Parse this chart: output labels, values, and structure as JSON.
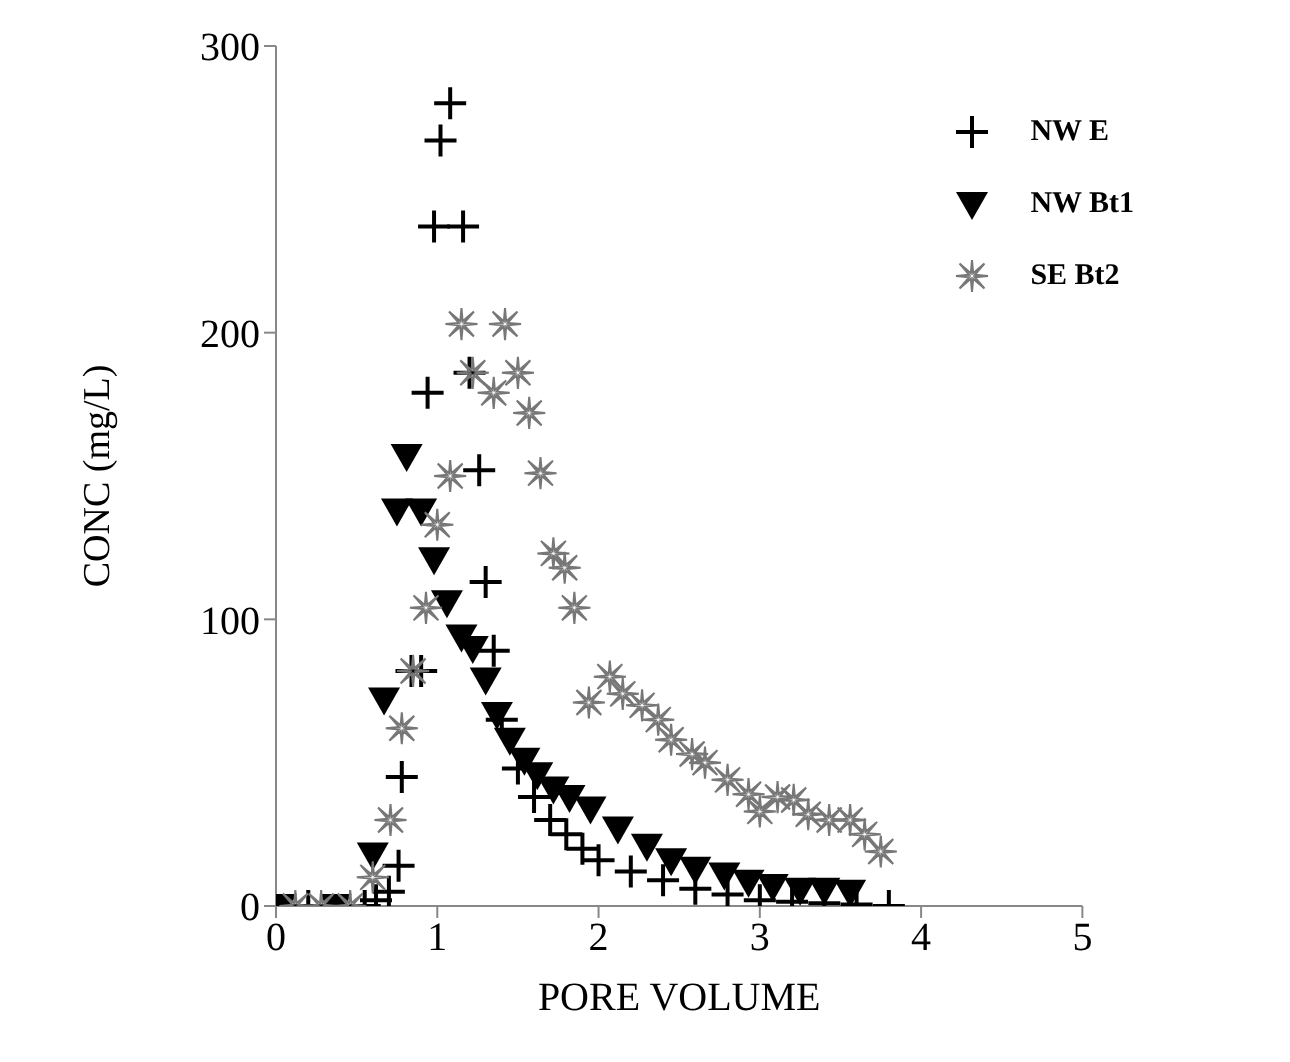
{
  "chart_data": {
    "type": "scatter",
    "xlabel": "PORE VOLUME",
    "ylabel": "CONC (mg/L)",
    "xlim": [
      0,
      5
    ],
    "ylim": [
      0,
      300
    ],
    "xticks": [
      0,
      1,
      2,
      3,
      4,
      5
    ],
    "yticks": [
      0,
      100,
      200,
      300
    ],
    "grid": false,
    "legend": "top right",
    "series": [
      {
        "name": "NW E",
        "color": "#000000",
        "marker": "cross",
        "x": [
          0.2,
          0.55,
          0.62,
          0.7,
          0.76,
          0.78,
          0.84,
          0.9,
          0.94,
          0.98,
          1.02,
          1.08,
          1.16,
          1.2,
          1.26,
          1.3,
          1.35,
          1.4,
          1.5,
          1.6,
          1.7,
          1.8,
          1.9,
          2.0,
          2.2,
          2.4,
          2.6,
          2.8,
          3.0,
          3.2,
          3.4,
          3.6,
          3.8
        ],
        "values": [
          0,
          0,
          2,
          5,
          14,
          45,
          82,
          82,
          179,
          237,
          267,
          280,
          237,
          186,
          152,
          113,
          89,
          65,
          48,
          38,
          30,
          25,
          20,
          16,
          12,
          9,
          6,
          4,
          2,
          1.5,
          1,
          0.5,
          0
        ]
      },
      {
        "name": "NW Bt1",
        "color": "#000000",
        "marker": "triangle",
        "x": [
          0.03,
          0.37,
          0.6,
          0.67,
          0.75,
          0.81,
          0.9,
          0.98,
          1.06,
          1.15,
          1.22,
          1.3,
          1.37,
          1.45,
          1.54,
          1.62,
          1.72,
          1.82,
          1.95,
          2.12,
          2.3,
          2.45,
          2.6,
          2.78,
          2.93,
          3.08,
          3.25,
          3.4,
          3.56
        ],
        "values": [
          0,
          0,
          18,
          72,
          138,
          157,
          138,
          121,
          106,
          94,
          90,
          79,
          67,
          58,
          51,
          46,
          41,
          38,
          34,
          27,
          21,
          16,
          13,
          11,
          8.5,
          7,
          5.7,
          5.7,
          5
        ]
      },
      {
        "name": "SE Bt2",
        "color": "#777777",
        "marker": "star",
        "x": [
          0.12,
          0.28,
          0.46,
          0.6,
          0.71,
          0.78,
          0.85,
          0.93,
          1.0,
          1.08,
          1.15,
          1.22,
          1.35,
          1.42,
          1.5,
          1.57,
          1.64,
          1.72,
          1.79,
          1.85,
          1.94,
          2.07,
          2.15,
          2.27,
          2.37,
          2.45,
          2.58,
          2.66,
          2.8,
          2.93,
          3.0,
          3.11,
          3.21,
          3.3,
          3.43,
          3.56,
          3.65,
          3.75
        ],
        "values": [
          0,
          0,
          0,
          10,
          30,
          62,
          82,
          104,
          133,
          150,
          203,
          186,
          179,
          203,
          186,
          172,
          151,
          123,
          118,
          104,
          71,
          80,
          74,
          70,
          65,
          58,
          53,
          50,
          44,
          39,
          33,
          38,
          37,
          32,
          30,
          30,
          25,
          19
        ]
      }
    ]
  }
}
